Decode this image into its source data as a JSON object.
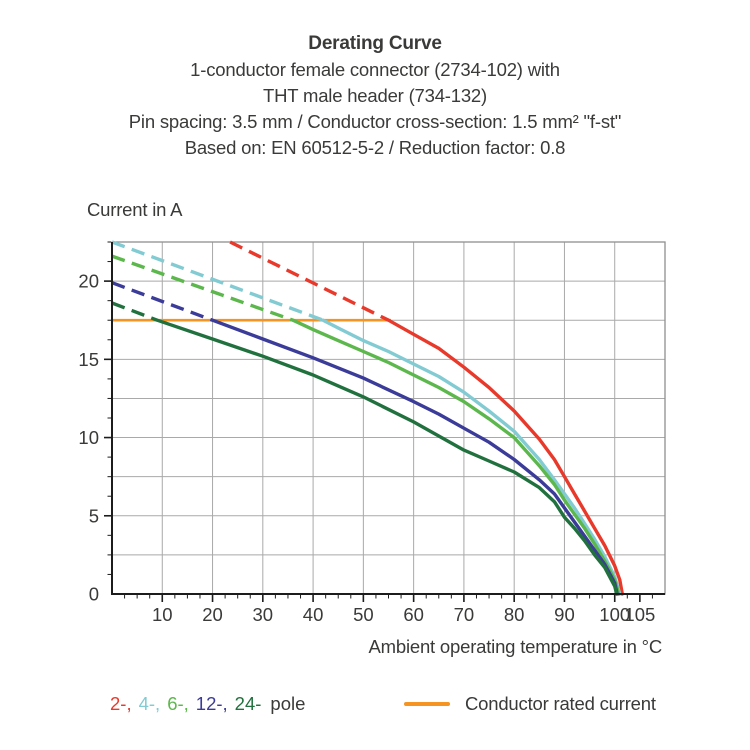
{
  "header": {
    "title": "Derating Curve",
    "subtitle_lines": [
      "1-conductor female connector (2734-102) with",
      "THT male header (734-132)",
      "Pin spacing: 3.5 mm / Conductor cross-section: 1.5 mm² \"f-st\"",
      "Based on: EN 60512-5-2 / Reduction factor: 0.8"
    ]
  },
  "legend": {
    "poles": [
      {
        "label": "2-,",
        "color": "#e8392b"
      },
      {
        "label": "4-,",
        "color": "#82cbd3"
      },
      {
        "label": "6-,",
        "color": "#5cb74c"
      },
      {
        "label": "12-,",
        "color": "#3b3b99"
      },
      {
        "label": "24-",
        "color": "#21713e"
      }
    ],
    "poles_suffix": "pole",
    "rated_label": "Conductor rated current",
    "rated_color": "#f59420"
  },
  "chart_data": {
    "type": "line",
    "title": "Derating Curve",
    "xlabel": "Ambient operating temperature in °C",
    "ylabel": "Current in A",
    "xlim": [
      0,
      110
    ],
    "ylim": [
      0,
      22.5
    ],
    "x_major_ticks": [
      10,
      20,
      30,
      40,
      50,
      60,
      70,
      80,
      90,
      100,
      105
    ],
    "x_minor_step": 2.5,
    "y_major_ticks": [
      0,
      5,
      10,
      15,
      20
    ],
    "y_minor_step": 1.25,
    "grid": {
      "x_step": 10,
      "y_step": 2.5,
      "color": "#a9a9a9",
      "border_color": "#8f8f8f"
    },
    "style_note": "dashed segments lie above the conductor rated current",
    "rated_current_line": {
      "label": "Conductor rated current",
      "value_a": 17.5,
      "x_from": 0,
      "x_to": 55.5,
      "color": "#f59420"
    },
    "series": [
      {
        "name": "2-pole",
        "color": "#e8392b",
        "dashed_points": [
          [
            23.5,
            22.5
          ],
          [
            55,
            17.5
          ]
        ],
        "solid_points": [
          [
            55,
            17.5
          ],
          [
            60,
            16.6
          ],
          [
            65,
            15.7
          ],
          [
            70,
            14.5
          ],
          [
            75,
            13.2
          ],
          [
            80,
            11.7
          ],
          [
            85,
            9.9
          ],
          [
            88,
            8.6
          ],
          [
            90,
            7.5
          ],
          [
            92,
            6.4
          ],
          [
            94,
            5.3
          ],
          [
            96,
            4.2
          ],
          [
            98,
            3.1
          ],
          [
            100,
            1.8
          ],
          [
            101,
            0.9
          ],
          [
            101.5,
            0
          ]
        ]
      },
      {
        "name": "4-pole",
        "color": "#82cbd3",
        "dashed_points": [
          [
            0,
            22.5
          ],
          [
            42,
            17.5
          ]
        ],
        "solid_points": [
          [
            42,
            17.5
          ],
          [
            45,
            17.0
          ],
          [
            50,
            16.2
          ],
          [
            55,
            15.5
          ],
          [
            60,
            14.7
          ],
          [
            65,
            13.9
          ],
          [
            70,
            12.9
          ],
          [
            75,
            11.7
          ],
          [
            80,
            10.4
          ],
          [
            85,
            8.6
          ],
          [
            88,
            7.3
          ],
          [
            90,
            6.4
          ],
          [
            92,
            5.5
          ],
          [
            94,
            4.5
          ],
          [
            96,
            3.5
          ],
          [
            98,
            2.4
          ],
          [
            100,
            1.1
          ],
          [
            101,
            0
          ]
        ]
      },
      {
        "name": "6-pole",
        "color": "#5cb74c",
        "dashed_points": [
          [
            0,
            21.6
          ],
          [
            36,
            17.5
          ]
        ],
        "solid_points": [
          [
            36,
            17.5
          ],
          [
            40,
            16.9
          ],
          [
            45,
            16.2
          ],
          [
            50,
            15.5
          ],
          [
            55,
            14.8
          ],
          [
            60,
            14.0
          ],
          [
            65,
            13.2
          ],
          [
            70,
            12.3
          ],
          [
            75,
            11.2
          ],
          [
            80,
            10.0
          ],
          [
            85,
            8.2
          ],
          [
            88,
            7.0
          ],
          [
            90,
            6.0
          ],
          [
            92,
            5.1
          ],
          [
            94,
            4.2
          ],
          [
            96,
            3.2
          ],
          [
            98,
            2.1
          ],
          [
            100,
            0.9
          ],
          [
            100.8,
            0
          ]
        ]
      },
      {
        "name": "12-pole",
        "color": "#3b3b99",
        "dashed_points": [
          [
            0,
            19.9
          ],
          [
            20,
            17.5
          ]
        ],
        "solid_points": [
          [
            20,
            17.5
          ],
          [
            30,
            16.3
          ],
          [
            40,
            15.1
          ],
          [
            50,
            13.8
          ],
          [
            60,
            12.3
          ],
          [
            65,
            11.5
          ],
          [
            70,
            10.6
          ],
          [
            75,
            9.7
          ],
          [
            80,
            8.6
          ],
          [
            85,
            7.3
          ],
          [
            88,
            6.4
          ],
          [
            90,
            5.5
          ],
          [
            92,
            4.6
          ],
          [
            94,
            3.7
          ],
          [
            96,
            2.8
          ],
          [
            98,
            1.9
          ],
          [
            100,
            0.7
          ],
          [
            100.5,
            0
          ]
        ]
      },
      {
        "name": "24-pole",
        "color": "#21713e",
        "dashed_points": [
          [
            0,
            18.6
          ],
          [
            9,
            17.5
          ]
        ],
        "solid_points": [
          [
            9,
            17.5
          ],
          [
            20,
            16.3
          ],
          [
            30,
            15.2
          ],
          [
            40,
            14.0
          ],
          [
            50,
            12.6
          ],
          [
            60,
            11.0
          ],
          [
            70,
            9.2
          ],
          [
            75,
            8.5
          ],
          [
            80,
            7.8
          ],
          [
            85,
            6.8
          ],
          [
            88,
            5.9
          ],
          [
            90,
            4.9
          ],
          [
            92,
            4.2
          ],
          [
            94,
            3.4
          ],
          [
            96,
            2.5
          ],
          [
            98,
            1.7
          ],
          [
            100,
            0.5
          ],
          [
            100.4,
            0
          ]
        ]
      }
    ]
  }
}
